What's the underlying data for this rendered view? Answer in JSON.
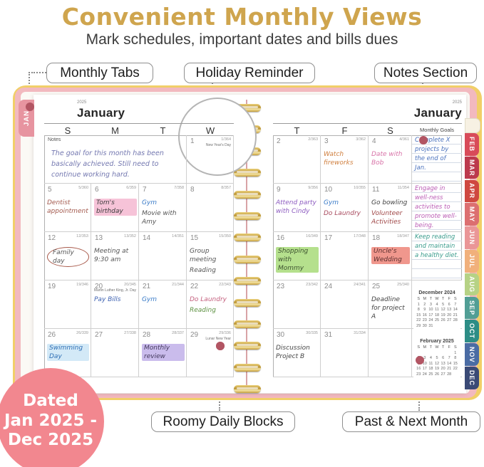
{
  "header": {
    "title": "Convenient Monthly Views",
    "title_color": "#cfa54e",
    "subtitle": "Mark schedules, important dates and bills dues"
  },
  "callouts": {
    "monthly_tabs": "Monthly Tabs",
    "holiday_reminder": "Holiday Reminder",
    "notes_section": "Notes Section",
    "roomy_daily_blocks": "Roomy Daily Blocks",
    "past_next_month": "Past & Next Month"
  },
  "annotation": {
    "dot_color": "#b25563",
    "line_color": "#8a8a8a"
  },
  "badge": {
    "lines": [
      "Dated",
      "Jan 2025 -",
      "Dec 2025"
    ],
    "bg_color": "#f2878f"
  },
  "planner": {
    "cover_pink": "#f2b9bf",
    "cover_yellow": "#f1cf68",
    "left_tab": {
      "label": "JAN",
      "color": "#e794a0"
    },
    "year": "2025",
    "month": "January",
    "notes_label": "Notes",
    "notes_text": "The goal for this month has been basically achieved. Still need to continue working hard.",
    "notes_color": "#7478b0",
    "left_day_headers": [
      "S",
      "M",
      "T",
      "W"
    ],
    "right_day_headers": [
      "T",
      "F",
      "S"
    ],
    "goals_header": "Monthly Goals",
    "right_tabs": [
      {
        "label": "",
        "color": "#f7f1e3"
      },
      {
        "label": "FEB",
        "color": "#d84b59"
      },
      {
        "label": "MAR",
        "color": "#bc3a4d"
      },
      {
        "label": "APR",
        "color": "#cf4840"
      },
      {
        "label": "MAY",
        "color": "#dc6f70"
      },
      {
        "label": "JUN",
        "color": "#ea9697"
      },
      {
        "label": "JUL",
        "color": "#f1b07b"
      },
      {
        "label": "AUG",
        "color": "#b6d285"
      },
      {
        "label": "SEP",
        "color": "#519e95"
      },
      {
        "label": "OCT",
        "color": "#2d8d86"
      },
      {
        "label": "NOV",
        "color": "#4a6ca4"
      },
      {
        "label": "DEC",
        "color": "#3a4a76"
      }
    ],
    "days": [
      {
        "page": "L",
        "row": 0,
        "col": 3,
        "num": "1",
        "corner": "1/364",
        "holiday": "New Year's Day",
        "entries": []
      },
      {
        "page": "L",
        "row": 1,
        "col": 0,
        "num": "5",
        "corner": "5/360",
        "entries": [
          {
            "text": "Dentist appointment",
            "color": "#a35a4e"
          }
        ]
      },
      {
        "page": "L",
        "row": 1,
        "col": 1,
        "num": "6",
        "corner": "6/359",
        "entries": [
          {
            "text": "Tom's birthday",
            "color": "#3a3a3a",
            "highlight": "#f6c3d8"
          }
        ]
      },
      {
        "page": "L",
        "row": 1,
        "col": 2,
        "num": "7",
        "corner": "7/358",
        "entries": [
          {
            "text": "Gym",
            "color": "#3a7bc8"
          },
          {
            "text": "Movie with Amy",
            "color": "#555555"
          }
        ]
      },
      {
        "page": "L",
        "row": 1,
        "col": 3,
        "num": "8",
        "corner": "8/357",
        "entries": []
      },
      {
        "page": "L",
        "row": 2,
        "col": 0,
        "num": "12",
        "corner": "12/353",
        "entries": [
          {
            "text": "Family day",
            "color": "#555555",
            "circled": true
          }
        ]
      },
      {
        "page": "L",
        "row": 2,
        "col": 1,
        "num": "13",
        "corner": "13/352",
        "entries": [
          {
            "text": "Meeting at 9:30 am",
            "color": "#555555"
          }
        ]
      },
      {
        "page": "L",
        "row": 2,
        "col": 2,
        "num": "14",
        "corner": "14/351",
        "entries": []
      },
      {
        "page": "L",
        "row": 2,
        "col": 3,
        "num": "15",
        "corner": "15/350",
        "entries": [
          {
            "text": "Group meeting",
            "color": "#555555"
          },
          {
            "text": "Reading",
            "color": "#555555"
          }
        ]
      },
      {
        "page": "L",
        "row": 3,
        "col": 0,
        "num": "19",
        "corner": "19/346",
        "entries": []
      },
      {
        "page": "L",
        "row": 3,
        "col": 1,
        "num": "20",
        "corner": "20/345",
        "holiday": "Martin Luther King, Jr. Day",
        "entries": [
          {
            "text": "Pay Bills",
            "color": "#3a5fb0"
          }
        ]
      },
      {
        "page": "L",
        "row": 3,
        "col": 2,
        "num": "21",
        "corner": "21/344",
        "entries": [
          {
            "text": "Gym",
            "color": "#3a7bc8"
          }
        ]
      },
      {
        "page": "L",
        "row": 3,
        "col": 3,
        "num": "22",
        "corner": "22/343",
        "entries": [
          {
            "text": "Do Laundry",
            "color": "#c4607e"
          },
          {
            "text": "Reading",
            "color": "#5d9141"
          }
        ]
      },
      {
        "page": "L",
        "row": 4,
        "col": 0,
        "num": "26",
        "corner": "26/339",
        "entries": [
          {
            "text": "Swimming Day",
            "color": "#2f6fb5",
            "highlight": "#d3e9f7"
          }
        ]
      },
      {
        "page": "L",
        "row": 4,
        "col": 1,
        "num": "27",
        "corner": "27/338",
        "entries": []
      },
      {
        "page": "L",
        "row": 4,
        "col": 2,
        "num": "28",
        "corner": "28/337",
        "entries": [
          {
            "text": "Monthly review",
            "color": "#44395e",
            "highlight": "#cabcec"
          }
        ]
      },
      {
        "page": "L",
        "row": 4,
        "col": 3,
        "num": "29",
        "corner": "29/336",
        "holiday": "Lunar New Year",
        "entries": []
      },
      {
        "page": "R",
        "row": 0,
        "col": 0,
        "num": "2",
        "corner": "2/363",
        "entries": []
      },
      {
        "page": "R",
        "row": 0,
        "col": 1,
        "num": "3",
        "corner": "3/362",
        "entries": [
          {
            "text": "Watch fireworks",
            "color": "#d08040"
          }
        ]
      },
      {
        "page": "R",
        "row": 0,
        "col": 2,
        "num": "4",
        "corner": "4/361",
        "entries": [
          {
            "text": "Date with Bob",
            "color": "#d873a8"
          }
        ]
      },
      {
        "page": "R",
        "row": 1,
        "col": 0,
        "num": "9",
        "corner": "9/356",
        "entries": [
          {
            "text": "Attend party with Cindy",
            "color": "#8d5cc0"
          }
        ]
      },
      {
        "page": "R",
        "row": 1,
        "col": 1,
        "num": "10",
        "corner": "10/355",
        "entries": [
          {
            "text": "Gym",
            "color": "#3a7bc8"
          },
          {
            "text": "Do Laundry",
            "color": "#a84a5e"
          }
        ]
      },
      {
        "page": "R",
        "row": 1,
        "col": 2,
        "num": "11",
        "corner": "11/354",
        "entries": [
          {
            "text": "Go bowling",
            "color": "#444444"
          },
          {
            "text": "Volunteer Activities",
            "color": "#a04848"
          }
        ]
      },
      {
        "page": "R",
        "row": 2,
        "col": 0,
        "num": "16",
        "corner": "16/349",
        "entries": [
          {
            "text": "Shopping with Mommy",
            "color": "#3d5230",
            "highlight": "#b5e08d"
          }
        ]
      },
      {
        "page": "R",
        "row": 2,
        "col": 1,
        "num": "17",
        "corner": "17/348",
        "entries": []
      },
      {
        "page": "R",
        "row": 2,
        "col": 2,
        "num": "18",
        "corner": "18/347",
        "entries": [
          {
            "text": "Uncle's Wedding",
            "color": "#5a2e2e",
            "highlight": "#f0978d"
          }
        ]
      },
      {
        "page": "R",
        "row": 3,
        "col": 0,
        "num": "23",
        "corner": "23/342",
        "entries": []
      },
      {
        "page": "R",
        "row": 3,
        "col": 1,
        "num": "24",
        "corner": "24/341",
        "entries": []
      },
      {
        "page": "R",
        "row": 3,
        "col": 2,
        "num": "25",
        "corner": "25/340",
        "entries": [
          {
            "text": "Deadline for project A",
            "color": "#444444"
          }
        ]
      },
      {
        "page": "R",
        "row": 4,
        "col": 0,
        "num": "30",
        "corner": "30/335",
        "entries": [
          {
            "text": "Discussion Project B",
            "color": "#444444"
          }
        ]
      },
      {
        "page": "R",
        "row": 4,
        "col": 1,
        "num": "31",
        "corner": "31/334",
        "entries": []
      },
      {
        "page": "R",
        "row": 4,
        "col": 2,
        "num": "",
        "corner": "",
        "entries": []
      }
    ],
    "goals": [
      {
        "text": "Complete X projects by the end of Jan.",
        "color": "#4a72bd"
      },
      {
        "text": "Engage in well-ness activities to promote well-being.",
        "color": "#bb5cb4"
      },
      {
        "text": "Keep reading and maintain a healthy diet.",
        "color": "#3a9c8c"
      }
    ],
    "mini_calendars": [
      {
        "title": "December 2024",
        "days_header": [
          "S",
          "M",
          "T",
          "W",
          "T",
          "F",
          "S"
        ],
        "weeks": [
          [
            "1",
            "2",
            "3",
            "4",
            "5",
            "6",
            "7"
          ],
          [
            "8",
            "9",
            "10",
            "11",
            "12",
            "13",
            "14"
          ],
          [
            "15",
            "16",
            "17",
            "18",
            "19",
            "20",
            "21"
          ],
          [
            "22",
            "23",
            "24",
            "25",
            "26",
            "27",
            "28"
          ],
          [
            "29",
            "30",
            "31",
            "",
            "",
            "",
            ""
          ]
        ]
      },
      {
        "title": "February 2025",
        "days_header": [
          "S",
          "M",
          "T",
          "W",
          "T",
          "F",
          "S"
        ],
        "weeks": [
          [
            "",
            "",
            "",
            "",
            "",
            "",
            "1"
          ],
          [
            "2",
            "3",
            "4",
            "5",
            "6",
            "7",
            "8"
          ],
          [
            "9",
            "10",
            "11",
            "12",
            "13",
            "14",
            "15"
          ],
          [
            "16",
            "17",
            "18",
            "19",
            "20",
            "21",
            "22"
          ],
          [
            "23",
            "24",
            "25",
            "26",
            "27",
            "28",
            ""
          ]
        ]
      }
    ]
  }
}
